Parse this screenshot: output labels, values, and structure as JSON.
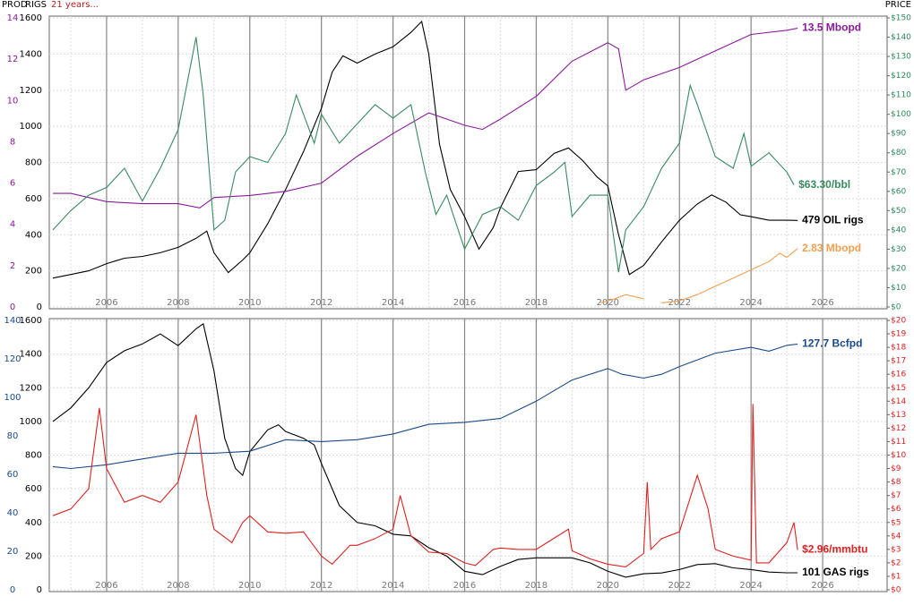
{
  "chart_data": [
    {
      "type": "line",
      "axis_titles": {
        "prod": "PROD",
        "rigs": "RIGS",
        "price": "PRICE"
      },
      "note": "21 years...",
      "xlim": [
        2004.4,
        2027.8
      ],
      "xticks": [
        2006,
        2008,
        2010,
        2012,
        2014,
        2016,
        2018,
        2020,
        2022,
        2024,
        2026
      ],
      "ylim": [
        0,
        1600
      ],
      "yticks": [
        0,
        200,
        400,
        600,
        800,
        1000,
        1200,
        1400,
        1600
      ],
      "y2lim": [
        0,
        150
      ],
      "y2ticks": [
        {
          "value": 0,
          "label": "$0"
        },
        {
          "value": 10,
          "label": "$10"
        },
        {
          "value": 20,
          "label": "$20"
        },
        {
          "value": 30,
          "label": "$30"
        },
        {
          "value": 40,
          "label": "$40"
        },
        {
          "value": 50,
          "label": "$50"
        },
        {
          "value": 60,
          "label": "$60"
        },
        {
          "value": 70,
          "label": "$70"
        },
        {
          "value": 80,
          "label": "$80"
        },
        {
          "value": 90,
          "label": "$90"
        },
        {
          "value": 100,
          "label": "$100"
        },
        {
          "value": 110,
          "label": "$110"
        },
        {
          "value": 120,
          "label": "$120"
        },
        {
          "value": 130,
          "label": "$130"
        },
        {
          "value": 140,
          "label": "$140"
        },
        {
          "value": 150,
          "label": "$150"
        }
      ],
      "y3lim": [
        0,
        14
      ],
      "y3ticks": [
        0,
        2,
        4,
        6,
        8,
        10,
        12,
        14
      ],
      "series": [
        {
          "name": "OIL rigs",
          "label": "479 OIL rigs",
          "color": "#000000",
          "axis": "y",
          "x": [
            2004.5,
            2005,
            2005.5,
            2006,
            2006.5,
            2007,
            2007.5,
            2008,
            2008.5,
            2008.8,
            2009,
            2009.4,
            2009.8,
            2010,
            2010.5,
            2011,
            2011.5,
            2012,
            2012.3,
            2012.6,
            2013,
            2013.5,
            2014,
            2014.5,
            2014.8,
            2015,
            2015.3,
            2015.6,
            2016,
            2016.4,
            2016.8,
            2017,
            2017.5,
            2018,
            2018.5,
            2018.9,
            2019.3,
            2019.7,
            2020,
            2020.3,
            2020.6,
            2021,
            2021.5,
            2022,
            2022.5,
            2022.9,
            2023.3,
            2023.7,
            2024,
            2024.5,
            2025,
            2025.3
          ],
          "values": [
            160,
            180,
            200,
            240,
            270,
            280,
            300,
            330,
            380,
            420,
            300,
            190,
            260,
            300,
            460,
            650,
            860,
            1100,
            1300,
            1390,
            1350,
            1400,
            1440,
            1520,
            1580,
            1400,
            900,
            650,
            500,
            320,
            440,
            550,
            750,
            760,
            850,
            880,
            810,
            720,
            670,
            400,
            180,
            230,
            360,
            480,
            570,
            620,
            580,
            510,
            500,
            480,
            480,
            479
          ]
        },
        {
          "name": "Oil production",
          "label": "13.5 Mbopd",
          "color": "#8b1a9b",
          "axis": "y3",
          "x": [
            2004.5,
            2005,
            2006,
            2007,
            2008,
            2008.6,
            2009,
            2010,
            2011,
            2012,
            2013,
            2014,
            2015,
            2016,
            2016.5,
            2017,
            2018,
            2019,
            2020,
            2020.3,
            2020.5,
            2021,
            2022,
            2023,
            2024,
            2025,
            2025.3
          ],
          "values": [
            5.5,
            5.5,
            5.1,
            5.0,
            5.0,
            4.8,
            5.3,
            5.4,
            5.6,
            6.0,
            7.3,
            8.4,
            9.4,
            8.8,
            8.6,
            9.1,
            10.2,
            11.9,
            12.8,
            12.5,
            10.5,
            11.0,
            11.6,
            12.4,
            13.2,
            13.4,
            13.5
          ]
        },
        {
          "name": "Oil price",
          "label": "$63.30/bbl",
          "color": "#3a8a60",
          "axis": "y2",
          "x": [
            2004.5,
            2005,
            2005.5,
            2006,
            2006.5,
            2007,
            2007.5,
            2008,
            2008.5,
            2008.7,
            2009,
            2009.3,
            2009.6,
            2010,
            2010.5,
            2011,
            2011.3,
            2011.8,
            2012,
            2012.5,
            2013,
            2013.5,
            2014,
            2014.5,
            2014.9,
            2015.2,
            2015.5,
            2016,
            2016.5,
            2017,
            2017.5,
            2018,
            2018.5,
            2018.8,
            2019,
            2019.5,
            2020,
            2020.3,
            2020.5,
            2021,
            2021.5,
            2022,
            2022.3,
            2022.5,
            2023,
            2023.5,
            2023.8,
            2024,
            2024.5,
            2025,
            2025.2
          ],
          "values": [
            40,
            50,
            58,
            62,
            72,
            55,
            72,
            92,
            140,
            110,
            40,
            45,
            70,
            78,
            75,
            90,
            110,
            85,
            100,
            85,
            95,
            105,
            98,
            105,
            70,
            48,
            58,
            30,
            48,
            52,
            45,
            63,
            70,
            75,
            47,
            58,
            58,
            18,
            40,
            52,
            72,
            85,
            115,
            105,
            78,
            72,
            90,
            73,
            80,
            70,
            63.3
          ]
        },
        {
          "name": "New production",
          "label": "2.83 Mbopd",
          "color": "#f0a050",
          "axis": "y3",
          "x": [
            2019.8,
            2020.2,
            2020.5,
            2021,
            2021.3,
            2021.5,
            2022,
            2022.5,
            2023,
            2023.5,
            2024,
            2024.5,
            2024.8,
            2025,
            2025.3
          ],
          "values": [
            0.2,
            0.4,
            0.6,
            0.4,
            null,
            0.2,
            0.3,
            0.6,
            1.0,
            1.4,
            1.8,
            2.2,
            2.6,
            2.4,
            2.83
          ]
        }
      ]
    },
    {
      "type": "line",
      "xlim": [
        2004.4,
        2027.8
      ],
      "xticks": [
        2006,
        2008,
        2010,
        2012,
        2014,
        2016,
        2018,
        2020,
        2022,
        2024,
        2026
      ],
      "ylim": [
        0,
        1600
      ],
      "yticks": [
        0,
        200,
        400,
        600,
        800,
        1000,
        1200,
        1400,
        1600
      ],
      "y2lim": [
        0,
        20
      ],
      "y2ticks": [
        {
          "value": 0,
          "label": "$0"
        },
        {
          "value": 1,
          "label": "$1"
        },
        {
          "value": 2,
          "label": "$2"
        },
        {
          "value": 3,
          "label": "$3"
        },
        {
          "value": 4,
          "label": "$4"
        },
        {
          "value": 5,
          "label": "$5"
        },
        {
          "value": 6,
          "label": "$6"
        },
        {
          "value": 7,
          "label": "$7"
        },
        {
          "value": 8,
          "label": "$8"
        },
        {
          "value": 9,
          "label": "$9"
        },
        {
          "value": 10,
          "label": "$10"
        },
        {
          "value": 11,
          "label": "$11"
        },
        {
          "value": 12,
          "label": "$12"
        },
        {
          "value": 13,
          "label": "$13"
        },
        {
          "value": 14,
          "label": "$14"
        },
        {
          "value": 15,
          "label": "$15"
        },
        {
          "value": 16,
          "label": "$16"
        },
        {
          "value": 17,
          "label": "$17"
        },
        {
          "value": 18,
          "label": "$18"
        },
        {
          "value": 19,
          "label": "$19"
        },
        {
          "value": 20,
          "label": "$20"
        }
      ],
      "y3lim": [
        0,
        140
      ],
      "y3ticks": [
        0,
        20,
        40,
        60,
        80,
        100,
        120,
        140
      ],
      "series": [
        {
          "name": "GAS rigs",
          "label": "101 GAS rigs",
          "color": "#000000",
          "axis": "y",
          "x": [
            2004.5,
            2005,
            2005.5,
            2006,
            2006.5,
            2007,
            2007.5,
            2008,
            2008.5,
            2008.7,
            2009,
            2009.3,
            2009.6,
            2009.8,
            2010,
            2010.5,
            2010.8,
            2011,
            2011.5,
            2011.8,
            2012,
            2012.5,
            2013,
            2013.5,
            2014,
            2014.5,
            2015,
            2015.5,
            2016,
            2016.5,
            2017,
            2017.5,
            2018,
            2018.5,
            2019,
            2019.5,
            2020,
            2020.5,
            2021,
            2021.5,
            2022,
            2022.5,
            2023,
            2023.5,
            2024,
            2024.5,
            2025,
            2025.3
          ],
          "values": [
            1000,
            1080,
            1200,
            1350,
            1420,
            1460,
            1520,
            1450,
            1550,
            1580,
            1300,
            900,
            720,
            680,
            820,
            950,
            980,
            940,
            900,
            860,
            750,
            500,
            400,
            380,
            330,
            320,
            250,
            200,
            110,
            90,
            140,
            180,
            190,
            190,
            190,
            160,
            110,
            75,
            95,
            100,
            120,
            150,
            155,
            130,
            120,
            105,
            101,
            101
          ]
        },
        {
          "name": "Gas production",
          "label": "127.7 Bcfpd",
          "color": "#1a4a8a",
          "axis": "y3",
          "x": [
            2004.5,
            2005,
            2006,
            2007,
            2008,
            2009,
            2010,
            2011,
            2012,
            2013,
            2014,
            2015,
            2016,
            2017,
            2018,
            2019,
            2020,
            2020.4,
            2021,
            2021.5,
            2022,
            2023,
            2024,
            2024.5,
            2025,
            2025.3
          ],
          "values": [
            64,
            63,
            65,
            68,
            71,
            71,
            72,
            78,
            77,
            78,
            81,
            86,
            87,
            89,
            98,
            109,
            115,
            112,
            110,
            112,
            116,
            123,
            126,
            124,
            127,
            127.7
          ]
        },
        {
          "name": "Gas price",
          "label": "$2.96/mmbtu",
          "color": "#e02020",
          "axis": "y2",
          "x": [
            2004.5,
            2005,
            2005.5,
            2005.8,
            2006,
            2006.5,
            2007,
            2007.5,
            2008,
            2008.5,
            2008.8,
            2009,
            2009.5,
            2009.8,
            2010,
            2010.5,
            2011,
            2011.5,
            2012,
            2012.3,
            2012.8,
            2013,
            2013.5,
            2014,
            2014.2,
            2014.5,
            2015,
            2015.5,
            2016,
            2016.3,
            2016.8,
            2017,
            2017.5,
            2018,
            2018.9,
            2019,
            2019.5,
            2020,
            2020.5,
            2021,
            2021.1,
            2021.2,
            2021.5,
            2022,
            2022.5,
            2022.8,
            2023,
            2023.5,
            2024,
            2024.05,
            2024.15,
            2024.5,
            2025,
            2025.2,
            2025.3
          ],
          "values": [
            5.5,
            6,
            7.5,
            13.5,
            9,
            6.5,
            7,
            6.5,
            8,
            13,
            7,
            4.5,
            3.5,
            5,
            5.5,
            4.3,
            4.2,
            4.3,
            2.5,
            1.9,
            3.3,
            3.3,
            3.8,
            4.5,
            7,
            4,
            2.8,
            2.7,
            2,
            1.8,
            3,
            3.1,
            3,
            3,
            4.5,
            2.9,
            2.3,
            1.9,
            1.7,
            2.7,
            8,
            3,
            3.8,
            4.3,
            8.5,
            6,
            3,
            2.5,
            2.2,
            13.8,
            2,
            2,
            3.5,
            5,
            2.96
          ]
        }
      ]
    }
  ]
}
